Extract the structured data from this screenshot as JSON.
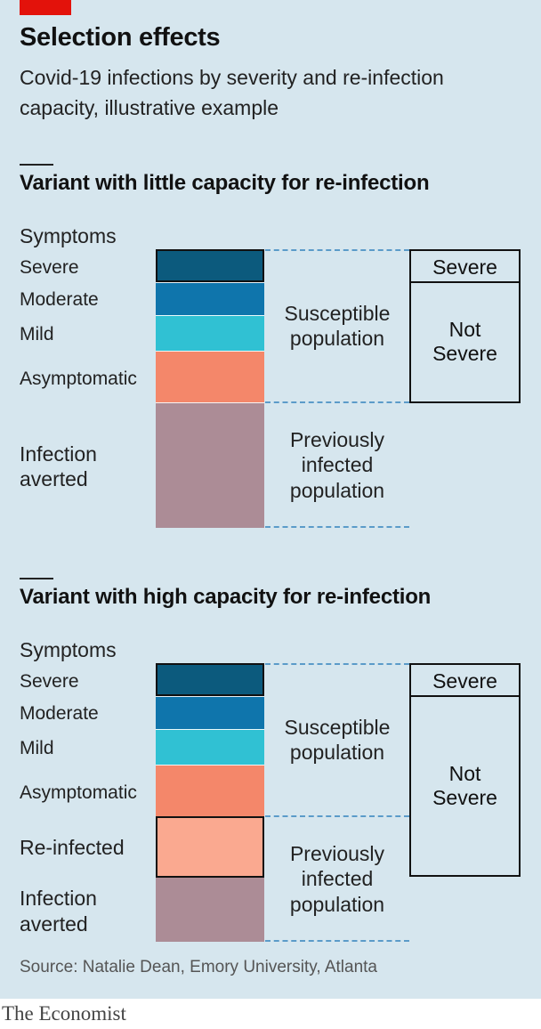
{
  "header": {
    "title": "Selection effects",
    "subtitle": "Covid-19 infections by severity and re-infection capacity, illustrative example"
  },
  "chart_data": [
    {
      "type": "bar",
      "title": "Variant with little capacity for re-infection",
      "axis_label": "Symptoms",
      "segments": [
        {
          "name": "Severe",
          "color": "#0c5a7d"
        },
        {
          "name": "Moderate",
          "color": "#0f75ac"
        },
        {
          "name": "Mild",
          "color": "#30c1d3"
        },
        {
          "name": "Asymptomatic",
          "color": "#f4876a"
        },
        {
          "name": "Infection averted",
          "color": "#ac8c96"
        }
      ],
      "annotations": [
        "Susceptible population",
        "Previously infected population"
      ],
      "outcome_boxes": [
        "Severe",
        "Not Severe"
      ]
    },
    {
      "type": "bar",
      "title": "Variant with high capacity for re-infection",
      "axis_label": "Symptoms",
      "segments": [
        {
          "name": "Severe",
          "color": "#0c5a7d"
        },
        {
          "name": "Moderate",
          "color": "#0f75ac"
        },
        {
          "name": "Mild",
          "color": "#30c1d3"
        },
        {
          "name": "Asymptomatic",
          "color": "#f4876a"
        },
        {
          "name": "Re-infected",
          "color": "#faa990"
        },
        {
          "name": "Infection averted",
          "color": "#ac8c96"
        }
      ],
      "annotations": [
        "Susceptible population",
        "Previously infected population"
      ],
      "outcome_boxes": [
        "Severe",
        "Not Severe"
      ]
    }
  ],
  "labels": {
    "symptoms": "Symptoms",
    "severe": "Severe",
    "moderate": "Moderate",
    "mild": "Mild",
    "asymptomatic": "Asymptomatic",
    "reinfected": "Re-infected",
    "averted_1": "Infection",
    "averted_2": "averted",
    "susceptible_1": "Susceptible",
    "susceptible_2": "population",
    "previously_1": "Previously",
    "previously_2": "infected",
    "previously_3": "population",
    "box_severe": "Severe",
    "box_not_1": "Not",
    "box_not_2": "Severe"
  },
  "source": "Source: Natalie Dean, Emory University, Atlanta",
  "brand": "The Economist"
}
